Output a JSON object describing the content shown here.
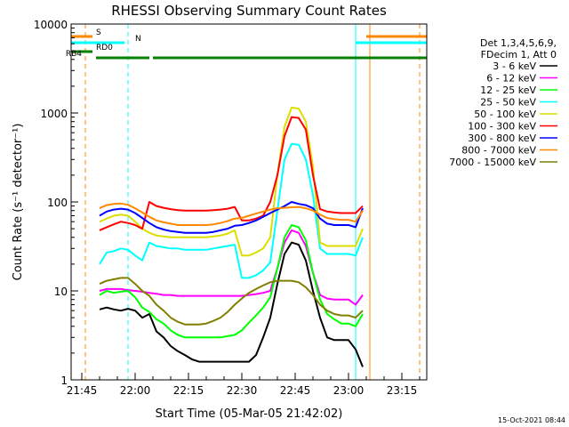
{
  "chart_data": {
    "type": "line",
    "title": "RHESSI Observing Summary Count Rates",
    "xlabel": "Start Time (05-Mar-05 21:42:02)",
    "ylabel": "Count Rate (s⁻¹ detector⁻¹)",
    "yscale": "log",
    "ylim": [
      1,
      10000
    ],
    "xlim": [
      "21:42",
      "23:22"
    ],
    "x_ticks": [
      "21:45",
      "22:00",
      "22:15",
      "22:30",
      "22:45",
      "23:00",
      "23:15"
    ],
    "y_ticks": [
      "1",
      "10",
      "100",
      "1000",
      "10000"
    ],
    "grid": false,
    "legend_position": "right",
    "legend_header": [
      "Det 1,3,4,5,6,9,",
      "FDecim 1, Att 0"
    ],
    "x_times_hhmm": [
      "21:42",
      "21:44",
      "21:46",
      "21:48",
      "21:50",
      "21:52",
      "21:54",
      "21:56",
      "21:58",
      "22:00",
      "22:02",
      "22:04",
      "22:06",
      "22:08",
      "22:10",
      "22:12",
      "22:14",
      "22:16",
      "22:18",
      "22:20",
      "22:22",
      "22:24",
      "22:26",
      "22:28",
      "22:30",
      "22:32",
      "22:34",
      "22:36",
      "22:38",
      "22:40",
      "22:42",
      "22:44",
      "22:46",
      "22:48",
      "22:50",
      "22:52",
      "22:54",
      "22:56",
      "22:58",
      "23:00",
      "23:02",
      "23:04",
      "23:06"
    ],
    "series": [
      {
        "name": "3 - 6 keV",
        "color": "#000000",
        "values": [
          null,
          null,
          null,
          null,
          6.2,
          6.5,
          6.2,
          6.0,
          6.3,
          6.0,
          5.0,
          5.5,
          3.5,
          3.0,
          2.4,
          2.1,
          1.9,
          1.7,
          1.6,
          1.6,
          1.6,
          1.6,
          1.6,
          1.6,
          1.6,
          1.6,
          1.9,
          3.0,
          5.0,
          12,
          26,
          35,
          33,
          22,
          10,
          5,
          3,
          2.8,
          2.8,
          2.8,
          2.2,
          1.4,
          null
        ]
      },
      {
        "name": "6 - 12 keV",
        "color": "#ff00ff",
        "values": [
          null,
          null,
          null,
          null,
          10,
          10.5,
          10.5,
          10.5,
          10.2,
          10,
          9.8,
          9.5,
          9.3,
          9.0,
          9.0,
          8.8,
          8.8,
          8.8,
          8.8,
          8.8,
          8.8,
          8.8,
          8.8,
          8.8,
          8.8,
          9.0,
          9.2,
          9.5,
          10,
          18,
          35,
          48,
          45,
          32,
          16,
          9.0,
          8.2,
          8.0,
          8.0,
          8.0,
          7.0,
          9.0,
          null
        ]
      },
      {
        "name": "12 - 25 keV",
        "color": "#00ff00",
        "values": [
          null,
          null,
          null,
          null,
          9,
          10,
          9.5,
          9.8,
          10,
          8.5,
          6.5,
          5.8,
          4.8,
          4.3,
          3.6,
          3.2,
          3.0,
          3.0,
          3.0,
          3.0,
          3.0,
          3.0,
          3.1,
          3.2,
          3.6,
          4.4,
          5.3,
          6.5,
          8.5,
          18,
          40,
          55,
          52,
          37,
          16,
          8.0,
          5.5,
          4.8,
          4.3,
          4.3,
          4.0,
          5.5,
          null
        ]
      },
      {
        "name": "25 - 50 keV",
        "color": "#00ffff",
        "values": [
          null,
          null,
          null,
          null,
          20,
          27,
          28,
          30,
          29,
          25,
          22,
          35,
          32,
          31,
          30,
          30,
          29,
          29,
          29,
          29,
          30,
          31,
          32,
          33,
          14,
          14,
          15,
          17,
          21,
          80,
          300,
          450,
          440,
          300,
          120,
          30,
          26,
          26,
          26,
          26,
          25,
          40,
          null
        ]
      },
      {
        "name": "50 - 100 keV",
        "color": "#dddd00",
        "values": [
          null,
          null,
          null,
          null,
          60,
          65,
          70,
          72,
          70,
          60,
          50,
          45,
          42,
          41,
          40,
          40,
          40,
          40,
          40,
          40,
          41,
          42,
          44,
          48,
          25,
          25,
          27,
          30,
          40,
          200,
          700,
          1150,
          1120,
          800,
          250,
          35,
          32,
          32,
          32,
          32,
          32,
          50,
          null
        ]
      },
      {
        "name": "100 - 300 keV",
        "color": "#ff0000",
        "values": [
          null,
          null,
          null,
          null,
          48,
          52,
          56,
          60,
          58,
          55,
          50,
          100,
          90,
          86,
          83,
          81,
          80,
          80,
          80,
          80,
          81,
          82,
          84,
          88,
          62,
          62,
          65,
          70,
          100,
          200,
          550,
          900,
          880,
          650,
          200,
          83,
          78,
          76,
          75,
          75,
          75,
          90,
          null
        ]
      },
      {
        "name": "300 - 800 keV",
        "color": "#0000ff",
        "values": [
          null,
          null,
          null,
          null,
          70,
          78,
          82,
          84,
          82,
          75,
          66,
          58,
          52,
          49,
          47,
          46,
          45,
          45,
          45,
          45,
          46,
          48,
          50,
          54,
          55,
          58,
          62,
          68,
          75,
          82,
          90,
          100,
          95,
          92,
          85,
          65,
          57,
          55,
          55,
          55,
          52,
          85,
          null
        ]
      },
      {
        "name": "800 - 7000 keV",
        "color": "#ff8800",
        "values": [
          null,
          null,
          null,
          null,
          85,
          92,
          95,
          96,
          93,
          85,
          76,
          68,
          62,
          59,
          57,
          55,
          55,
          55,
          55,
          55,
          56,
          58,
          61,
          65,
          66,
          70,
          74,
          78,
          82,
          85,
          86,
          87,
          88,
          85,
          80,
          72,
          66,
          64,
          63,
          63,
          60,
          80,
          null
        ]
      },
      {
        "name": "7000 - 15000 keV",
        "color": "#808000",
        "values": [
          null,
          null,
          null,
          null,
          12,
          13,
          13.5,
          14,
          14,
          12,
          10,
          8.8,
          7.0,
          6.0,
          5.0,
          4.5,
          4.2,
          4.2,
          4.2,
          4.3,
          4.6,
          5.0,
          5.8,
          7.0,
          8.2,
          9.5,
          10.5,
          11.5,
          12.5,
          13,
          13,
          13,
          12.5,
          11,
          9.0,
          7.0,
          6.0,
          5.5,
          5.3,
          5.3,
          5.0,
          6.0,
          null
        ]
      }
    ],
    "attenuator_bars": [
      {
        "label": "S",
        "color": "#ff8800",
        "segments": [
          [
            "21:42",
            "21:48"
          ],
          [
            "23:05",
            "23:22"
          ]
        ]
      },
      {
        "label": "N",
        "color": "#00ffff",
        "segments": [
          [
            "21:42",
            "21:57"
          ],
          [
            "23:02",
            "23:22"
          ]
        ]
      },
      {
        "label": "RD0",
        "color": "#008000",
        "segments": [
          [
            "21:42",
            "21:48"
          ]
        ]
      },
      {
        "label": "RB4",
        "color": "#008000",
        "segments": [
          [
            "21:49",
            "22:04"
          ],
          [
            "22:05",
            "22:27"
          ],
          [
            "22:27",
            "22:55"
          ],
          [
            "22:55",
            "23:22"
          ]
        ]
      }
    ],
    "vertical_markers": [
      {
        "time": "21:42",
        "color": "#00ffff",
        "style": "solid"
      },
      {
        "time": "21:46",
        "color": "#ff8800",
        "style": "dashed"
      },
      {
        "time": "21:58",
        "color": "#00ffff",
        "style": "dashed"
      },
      {
        "time": "23:02",
        "color": "#00ffff",
        "style": "solid"
      },
      {
        "time": "23:06",
        "color": "#ff8800",
        "style": "solid"
      },
      {
        "time": "23:20",
        "color": "#ff8800",
        "style": "dashed"
      }
    ]
  },
  "footer_timestamp": "15-Oct-2021 08:44"
}
